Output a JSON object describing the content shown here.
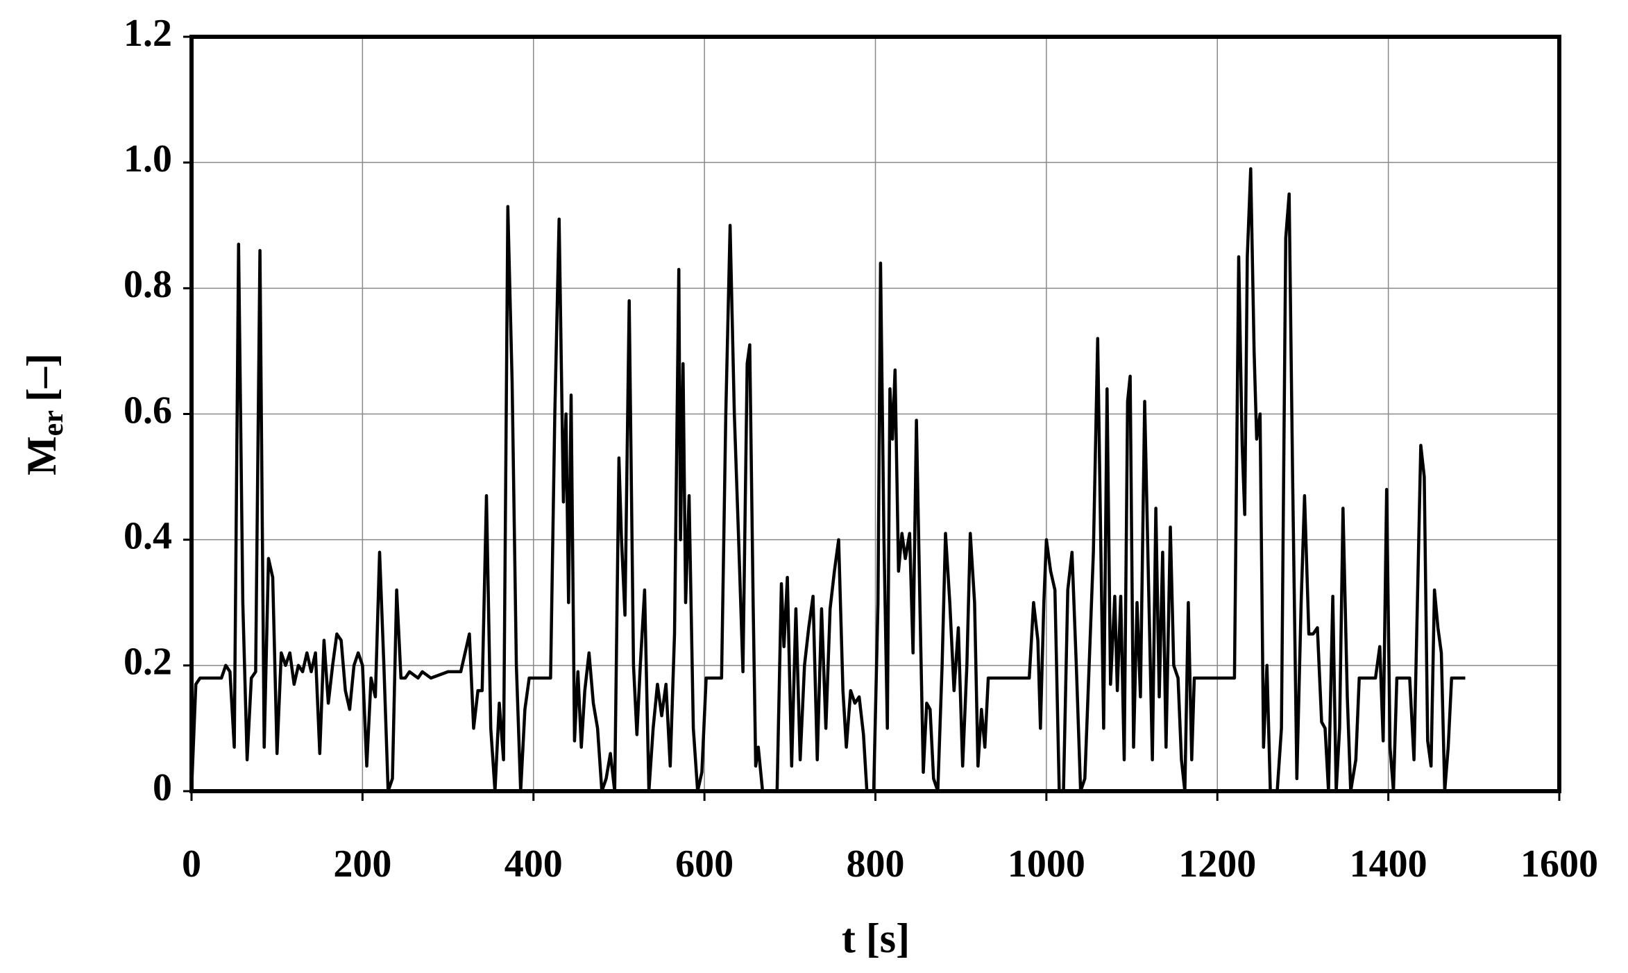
{
  "chart_data": {
    "type": "line",
    "x_label": "t [s]",
    "y_label": "M",
    "y_label_sub": "er",
    "y_label_unit": "[–]",
    "color": "#000000",
    "grid": true,
    "xlim": [
      0,
      1600
    ],
    "xticks": [
      0,
      200,
      400,
      600,
      800,
      1000,
      1200,
      1400,
      1600
    ],
    "ylim": [
      0,
      1.2
    ],
    "yticks": [
      0,
      0.2,
      0.4,
      0.6,
      0.8,
      {
        "value": 1,
        "label": "1.0"
      },
      1.2
    ],
    "x": [
      0,
      5,
      10,
      35,
      40,
      45,
      50,
      55,
      60,
      65,
      70,
      75,
      80,
      85,
      90,
      95,
      100,
      105,
      110,
      115,
      120,
      125,
      130,
      135,
      140,
      145,
      150,
      155,
      160,
      165,
      170,
      175,
      180,
      185,
      190,
      195,
      200,
      205,
      210,
      215,
      220,
      225,
      230,
      235,
      240,
      245,
      250,
      255,
      265,
      270,
      280,
      300,
      315,
      320,
      325,
      330,
      335,
      340,
      345,
      350,
      355,
      360,
      365,
      370,
      375,
      380,
      385,
      390,
      395,
      420,
      425,
      430,
      435,
      438,
      441,
      444,
      448,
      452,
      456,
      460,
      465,
      470,
      475,
      480,
      485,
      490,
      495,
      500,
      503,
      507,
      512,
      517,
      521,
      525,
      530,
      535,
      540,
      545,
      550,
      555,
      560,
      565,
      570,
      572,
      575,
      578,
      582,
      587,
      592,
      597,
      602,
      620,
      625,
      630,
      635,
      640,
      645,
      650,
      653,
      657,
      660,
      663,
      668,
      675,
      685,
      690,
      693,
      697,
      702,
      707,
      712,
      717,
      722,
      727,
      732,
      737,
      742,
      747,
      752,
      757,
      762,
      766,
      771,
      776,
      781,
      786,
      790,
      798,
      803,
      806,
      810,
      814,
      817,
      820,
      823,
      827,
      831,
      835,
      840,
      844,
      848,
      852,
      856,
      860,
      864,
      868,
      873,
      878,
      882,
      887,
      892,
      897,
      902,
      907,
      911,
      916,
      920,
      924,
      928,
      932,
      980,
      985,
      990,
      993,
      997,
      1000,
      1005,
      1010,
      1015,
      1020,
      1025,
      1030,
      1035,
      1040,
      1045,
      1050,
      1055,
      1060,
      1064,
      1067,
      1071,
      1075,
      1080,
      1083,
      1087,
      1091,
      1095,
      1098,
      1102,
      1106,
      1110,
      1115,
      1119,
      1124,
      1128,
      1132,
      1136,
      1140,
      1145,
      1149,
      1154,
      1158,
      1162,
      1166,
      1170,
      1173,
      1180,
      1220,
      1225,
      1229,
      1232,
      1235,
      1239,
      1243,
      1246,
      1250,
      1254,
      1258,
      1262,
      1270,
      1275,
      1280,
      1284,
      1288,
      1293,
      1298,
      1302,
      1307,
      1312,
      1317,
      1322,
      1326,
      1330,
      1335,
      1339,
      1343,
      1347,
      1352,
      1356,
      1362,
      1366,
      1385,
      1390,
      1394,
      1398,
      1402,
      1406,
      1410,
      1425,
      1430,
      1434,
      1438,
      1442,
      1446,
      1450,
      1454,
      1458,
      1462,
      1466,
      1470,
      1474,
      1490
    ],
    "values": [
      0,
      0.17,
      0.18,
      0.18,
      0.2,
      0.19,
      0.07,
      0.87,
      0.3,
      0.05,
      0.18,
      0.19,
      0.86,
      0.07,
      0.37,
      0.34,
      0.06,
      0.22,
      0.2,
      0.22,
      0.17,
      0.2,
      0.19,
      0.22,
      0.19,
      0.22,
      0.06,
      0.24,
      0.14,
      0.2,
      0.25,
      0.24,
      0.16,
      0.13,
      0.2,
      0.22,
      0.2,
      0.04,
      0.18,
      0.15,
      0.38,
      0.2,
      0,
      0.02,
      0.32,
      0.18,
      0.18,
      0.19,
      0.18,
      0.19,
      0.18,
      0.19,
      0.19,
      0.22,
      0.25,
      0.1,
      0.16,
      0.16,
      0.47,
      0.1,
      0,
      0.14,
      0.05,
      0.93,
      0.65,
      0.2,
      0,
      0.13,
      0.18,
      0.18,
      0.6,
      0.91,
      0.46,
      0.6,
      0.3,
      0.63,
      0.08,
      0.19,
      0.07,
      0.16,
      0.22,
      0.14,
      0.1,
      0,
      0.02,
      0.06,
      0,
      0.53,
      0.4,
      0.28,
      0.78,
      0.2,
      0.09,
      0.2,
      0.32,
      0,
      0.1,
      0.17,
      0.12,
      0.17,
      0.04,
      0.25,
      0.83,
      0.4,
      0.68,
      0.3,
      0.47,
      0.1,
      0,
      0.03,
      0.18,
      0.18,
      0.6,
      0.9,
      0.6,
      0.4,
      0.19,
      0.68,
      0.71,
      0.3,
      0.04,
      0.07,
      0,
      0,
      0,
      0.33,
      0.23,
      0.34,
      0.04,
      0.29,
      0.05,
      0.2,
      0.26,
      0.31,
      0.05,
      0.29,
      0.1,
      0.29,
      0.35,
      0.4,
      0.16,
      0.07,
      0.16,
      0.14,
      0.15,
      0.09,
      0,
      0,
      0.3,
      0.84,
      0.4,
      0.1,
      0.64,
      0.56,
      0.67,
      0.35,
      0.41,
      0.37,
      0.41,
      0.22,
      0.59,
      0.3,
      0.03,
      0.14,
      0.13,
      0.02,
      0,
      0.2,
      0.41,
      0.3,
      0.16,
      0.26,
      0.04,
      0.2,
      0.41,
      0.3,
      0.04,
      0.13,
      0.07,
      0.18,
      0.18,
      0.3,
      0.24,
      0.1,
      0.3,
      0.4,
      0.35,
      0.32,
      0,
      0,
      0.32,
      0.38,
      0.2,
      0,
      0.02,
      0.2,
      0.38,
      0.72,
      0.36,
      0.1,
      0.64,
      0.17,
      0.31,
      0.16,
      0.31,
      0.05,
      0.62,
      0.66,
      0.07,
      0.3,
      0.15,
      0.62,
      0.36,
      0.05,
      0.45,
      0.15,
      0.38,
      0.07,
      0.42,
      0.2,
      0.18,
      0.05,
      0,
      0.3,
      0.05,
      0.18,
      0.18,
      0.18,
      0.85,
      0.55,
      0.44,
      0.85,
      0.99,
      0.7,
      0.56,
      0.6,
      0.07,
      0.2,
      0,
      0,
      0.1,
      0.88,
      0.95,
      0.5,
      0.02,
      0.3,
      0.47,
      0.25,
      0.25,
      0.26,
      0.11,
      0.1,
      0,
      0.31,
      0,
      0.1,
      0.45,
      0.15,
      0,
      0.05,
      0.18,
      0.18,
      0.23,
      0.08,
      0.48,
      0.07,
      0,
      0.18,
      0.18,
      0.05,
      0.3,
      0.55,
      0.5,
      0.08,
      0.04,
      0.32,
      0.26,
      0.22,
      0,
      0.07,
      0.18,
      0.18
    ]
  }
}
